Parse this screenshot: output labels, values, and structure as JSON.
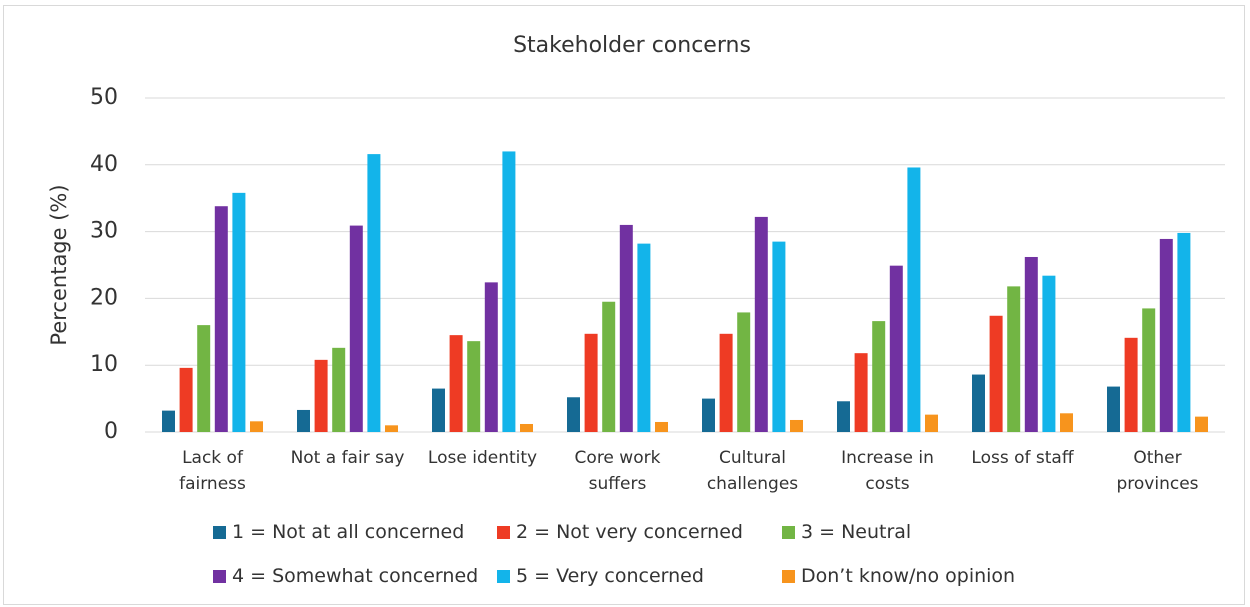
{
  "chart_data": {
    "type": "bar",
    "title": "Stakeholder concerns",
    "y_label": "Percentage (%)",
    "categories": [
      "Lack of fairness",
      "Not a fair say",
      "Lose identity",
      "Core work suffers",
      "Cultural challenges",
      "Increase in costs",
      "Loss of staff",
      "Other provinces"
    ],
    "series": [
      {
        "name": "1 = Not at all concerned",
        "color": "#156a94",
        "values": [
          3.2,
          3.3,
          6.5,
          5.2,
          5.0,
          4.6,
          8.6,
          6.8
        ]
      },
      {
        "name": "2 = Not very concerned",
        "color": "#ee3b24",
        "values": [
          9.6,
          10.8,
          14.5,
          14.7,
          14.7,
          11.8,
          17.4,
          14.1
        ]
      },
      {
        "name": "3 = Neutral",
        "color": "#72b544",
        "values": [
          16.0,
          12.6,
          13.6,
          19.5,
          17.9,
          16.6,
          21.8,
          18.5
        ]
      },
      {
        "name": "4 = Somewhat concerned",
        "color": "#7131a1",
        "values": [
          33.8,
          30.9,
          22.4,
          31.0,
          32.2,
          24.9,
          26.2,
          28.9
        ]
      },
      {
        "name": "5 = Very concerned",
        "color": "#13b4ea",
        "values": [
          35.8,
          41.6,
          42.0,
          28.2,
          28.5,
          39.6,
          23.4,
          29.8
        ]
      },
      {
        "name": "Don’t know/no opinion",
        "color": "#f7941d",
        "values": [
          1.6,
          1.0,
          1.2,
          1.5,
          1.8,
          2.6,
          2.8,
          2.3
        ]
      }
    ],
    "ylim": [
      0,
      50
    ],
    "yticks": [
      0,
      10,
      20,
      30,
      40,
      50
    ],
    "grid": true
  }
}
